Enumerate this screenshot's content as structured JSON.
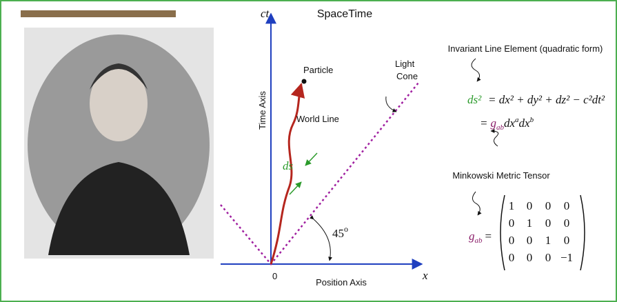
{
  "title": "SpaceTime",
  "axes": {
    "time_symbol": "ct",
    "time_label": "Time Axis",
    "origin": "0",
    "position_symbol": "x",
    "position_label": "Position Axis"
  },
  "labels": {
    "particle": "Particle",
    "light_cone": [
      "Light",
      "Cone"
    ],
    "world_line": "World Line",
    "ds": "ds",
    "angle": "45",
    "angle_sup": "o"
  },
  "line_element": {
    "caption": "Invariant Line Element (quadratic form)",
    "lhs": "ds²",
    "rhs": "= dx² + dy² + dz² − c²dt²",
    "eq": "=",
    "g": "g",
    "g_sub": "ab",
    "dx1": "dx",
    "sup1": "a",
    "dx2": "dx",
    "sup2": "b"
  },
  "metric": {
    "caption": "Minkowski Metric Tensor",
    "g": "g",
    "g_sub": "ab",
    "eq": "=",
    "rows": [
      [
        "1",
        "0",
        "0",
        "0"
      ],
      [
        "0",
        "1",
        "0",
        "0"
      ],
      [
        "0",
        "0",
        "1",
        "0"
      ],
      [
        "0",
        "0",
        "0",
        "−1"
      ]
    ]
  }
}
